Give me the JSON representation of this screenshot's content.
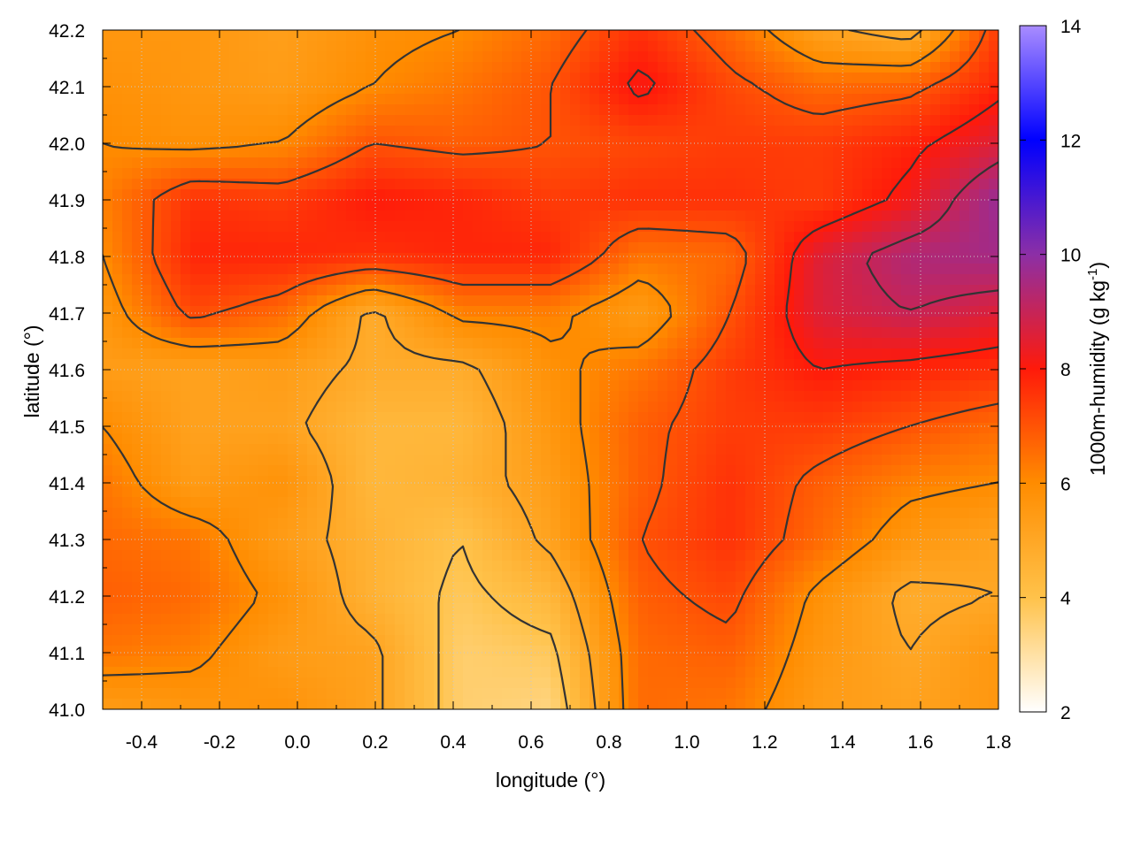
{
  "chart_data": {
    "type": "heatmap",
    "title": "",
    "xlabel": "longitude (°)",
    "ylabel": "latitude (°)",
    "colorbar_label": "1000m-humidity (g kg-1)",
    "colorbar_label_parts": {
      "main": "1000m-humidity (g kg",
      "sup": "-1",
      "close": ")"
    },
    "xlim": [
      -0.5,
      1.8
    ],
    "ylim": [
      41.0,
      42.2
    ],
    "clim": [
      2,
      14
    ],
    "grid": true,
    "contours": true,
    "x_ticks": [
      {
        "value": -0.4,
        "label": "-0.4"
      },
      {
        "value": -0.2,
        "label": "-0.2"
      },
      {
        "value": 0.0,
        "label": "0.0"
      },
      {
        "value": 0.2,
        "label": "0.2"
      },
      {
        "value": 0.4,
        "label": "0.4"
      },
      {
        "value": 0.6,
        "label": "0.6"
      },
      {
        "value": 0.8,
        "label": "0.8"
      },
      {
        "value": 1.0,
        "label": "1.0"
      },
      {
        "value": 1.2,
        "label": "1.2"
      },
      {
        "value": 1.4,
        "label": "1.4"
      },
      {
        "value": 1.6,
        "label": "1.6"
      },
      {
        "value": 1.8,
        "label": "1.8"
      }
    ],
    "y_ticks": [
      {
        "value": 41.0,
        "label": "41.0"
      },
      {
        "value": 41.1,
        "label": "41.1"
      },
      {
        "value": 41.2,
        "label": "41.2"
      },
      {
        "value": 41.3,
        "label": "41.3"
      },
      {
        "value": 41.4,
        "label": "41.4"
      },
      {
        "value": 41.5,
        "label": "41.5"
      },
      {
        "value": 41.6,
        "label": "41.6"
      },
      {
        "value": 41.7,
        "label": "41.7"
      },
      {
        "value": 41.8,
        "label": "41.8"
      },
      {
        "value": 41.9,
        "label": "41.9"
      },
      {
        "value": 42.0,
        "label": "42.0"
      },
      {
        "value": 42.1,
        "label": "42.1"
      },
      {
        "value": 42.2,
        "label": "42.2"
      }
    ],
    "colorbar_ticks": [
      {
        "value": 2,
        "label": "2"
      },
      {
        "value": 4,
        "label": "4"
      },
      {
        "value": 6,
        "label": "6"
      },
      {
        "value": 8,
        "label": "8"
      },
      {
        "value": 10,
        "label": "10"
      },
      {
        "value": 12,
        "label": "12"
      },
      {
        "value": 14,
        "label": "14"
      }
    ],
    "colormap": [
      {
        "value": 2,
        "color": "#ffffff"
      },
      {
        "value": 4,
        "color": "#ffc24a"
      },
      {
        "value": 6,
        "color": "#ff8c00"
      },
      {
        "value": 8,
        "color": "#ff1a0a"
      },
      {
        "value": 10,
        "color": "#8c2fa6"
      },
      {
        "value": 12,
        "color": "#0000ff"
      },
      {
        "value": 14,
        "color": "#a98cff"
      }
    ],
    "field_grid": {
      "lon": [
        -0.5,
        -0.27,
        -0.04,
        0.19,
        0.42,
        0.65,
        0.88,
        1.11,
        1.34,
        1.57,
        1.8
      ],
      "lat": [
        42.2,
        42.1,
        42.0,
        41.9,
        41.8,
        41.7,
        41.6,
        41.5,
        41.4,
        41.3,
        41.2,
        41.1,
        41.0
      ],
      "values": [
        [
          5.6,
          5.6,
          5.3,
          5.8,
          6.0,
          6.6,
          7.6,
          6.6,
          5.2,
          4.6,
          7.4
        ],
        [
          5.8,
          5.6,
          5.4,
          6.0,
          6.4,
          7.0,
          8.2,
          7.2,
          6.6,
          6.8,
          7.8
        ],
        [
          6.0,
          5.8,
          6.0,
          7.0,
          6.8,
          7.0,
          7.2,
          7.4,
          7.4,
          7.8,
          8.6
        ],
        [
          6.2,
          7.6,
          7.4,
          8.0,
          7.8,
          7.4,
          7.6,
          7.6,
          7.4,
          8.2,
          9.8
        ],
        [
          6.0,
          7.8,
          7.8,
          7.6,
          7.8,
          7.8,
          6.4,
          6.6,
          8.6,
          9.4,
          9.6
        ],
        [
          5.6,
          7.2,
          6.6,
          4.8,
          6.2,
          6.2,
          5.4,
          7.0,
          8.6,
          9.0,
          8.6
        ],
        [
          5.4,
          5.2,
          5.4,
          4.8,
          4.8,
          5.8,
          6.4,
          7.4,
          8.0,
          7.8,
          7.6
        ],
        [
          6.0,
          5.2,
          5.2,
          4.4,
          4.4,
          5.6,
          6.8,
          7.4,
          7.4,
          7.0,
          6.6
        ],
        [
          6.4,
          5.4,
          5.8,
          4.4,
          4.6,
          5.4,
          6.8,
          7.6,
          6.8,
          6.2,
          6.0
        ],
        [
          6.6,
          6.4,
          5.4,
          4.6,
          4.0,
          5.2,
          7.0,
          7.6,
          6.6,
          5.6,
          5.2
        ],
        [
          6.8,
          6.6,
          5.8,
          4.6,
          3.8,
          4.4,
          6.8,
          7.2,
          5.8,
          4.8,
          5.0
        ],
        [
          6.4,
          6.2,
          5.4,
          5.2,
          3.6,
          3.8,
          6.6,
          6.8,
          5.6,
          5.0,
          5.6
        ],
        [
          5.4,
          5.6,
          5.8,
          5.2,
          3.6,
          3.4,
          6.6,
          6.4,
          5.4,
          5.2,
          5.6
        ]
      ]
    }
  }
}
